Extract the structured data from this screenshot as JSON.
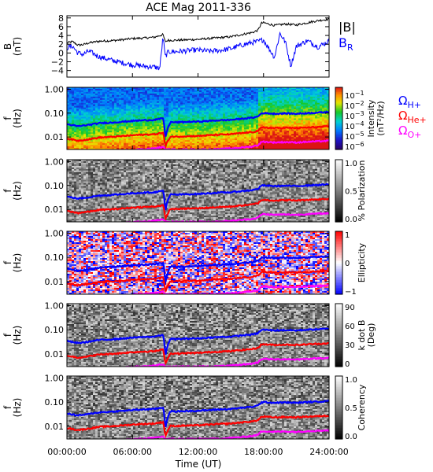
{
  "title": "ACE Mag 2011-336",
  "x_axis": {
    "label": "Time (UT)",
    "ticks": [
      {
        "value": 0,
        "label": "00:00:00"
      },
      {
        "value": 6,
        "label": "06:00:00"
      },
      {
        "value": 12,
        "label": "12:00:00"
      },
      {
        "value": 18,
        "label": "18:00:00"
      },
      {
        "value": 24,
        "label": "24:00:00"
      }
    ],
    "range": [
      0,
      24
    ]
  },
  "chart_data": [
    {
      "type": "line",
      "ylabel_line1": "B",
      "ylabel_line2": "(nT)",
      "ylim": [
        -5.5,
        8.5
      ],
      "yticks": [
        {
          "value": -4,
          "label": "−4"
        },
        {
          "value": -2,
          "label": "−2"
        },
        {
          "value": 0,
          "label": "0"
        },
        {
          "value": 2,
          "label": "2"
        },
        {
          "value": 4,
          "label": "4"
        },
        {
          "value": 6,
          "label": "6"
        },
        {
          "value": 8,
          "label": "8"
        }
      ],
      "series": [
        {
          "name": "|B|",
          "color": "#000000",
          "x": [
            0,
            0.5,
            1,
            1.5,
            2,
            3,
            4,
            5,
            6,
            7,
            8,
            8.8,
            9.0,
            9.3,
            10,
            11,
            12,
            13,
            14,
            15,
            16,
            17,
            17.5,
            17.8,
            18,
            19,
            20,
            21,
            22,
            23,
            24
          ],
          "y": [
            2.3,
            2.6,
            1.8,
            1.9,
            2.3,
            2.7,
            2.8,
            3.0,
            3.3,
            3.4,
            3.6,
            4.2,
            2.6,
            2.9,
            2.9,
            3.0,
            3.1,
            3.3,
            3.5,
            3.7,
            4.2,
            4.7,
            5.2,
            6.8,
            6.9,
            6.3,
            6.6,
            6.4,
            6.9,
            7.4,
            7.7
          ]
        },
        {
          "name": "B",
          "subscript": "R",
          "color": "#0000ff",
          "x": [
            0,
            0.5,
            1,
            1.5,
            2,
            3,
            4,
            5,
            6,
            7,
            8,
            8.5,
            8.8,
            9.0,
            9.3,
            10,
            11,
            12,
            13,
            14,
            15,
            16,
            17,
            17.5,
            17.8,
            18,
            19,
            19.5,
            20,
            20.5,
            21,
            22,
            23,
            24
          ],
          "y": [
            1.2,
            1.6,
            0.0,
            -0.3,
            0.4,
            -0.9,
            -1.6,
            -2.2,
            -2.7,
            -3.0,
            -3.2,
            -3.5,
            3.7,
            -0.8,
            0.3,
            0.3,
            0.5,
            0.7,
            0.4,
            0.6,
            1.0,
            1.8,
            2.4,
            2.6,
            2.9,
            3.0,
            -1.0,
            4.5,
            2.5,
            -3.0,
            1.5,
            2.8,
            1.4,
            2.7
          ]
        }
      ]
    },
    {
      "type": "heatmap",
      "ylabel_line1": "f",
      "ylabel_line2": "(Hz)",
      "colorbar": {
        "label_line1": "Intensity",
        "label_line2": "(nT²/Hz)",
        "scale": "rainbow",
        "ticks": [
          {
            "label": "10",
            "exp": "−1"
          },
          {
            "label": "10",
            "exp": "−2"
          },
          {
            "label": "10",
            "exp": "−3"
          },
          {
            "label": "10",
            "exp": "−4"
          },
          {
            "label": "10",
            "exp": "−5"
          },
          {
            "label": "10",
            "exp": "−6"
          }
        ]
      },
      "legend": [
        {
          "symbol": "Ω",
          "sub": "H+",
          "color": "#0000ff"
        },
        {
          "symbol": "Ω",
          "sub": "He+",
          "color": "#ff0000"
        },
        {
          "symbol": "Ω",
          "sub": "O+",
          "color": "#ff00ff"
        }
      ]
    },
    {
      "type": "heatmap",
      "ylabel_line1": "f",
      "ylabel_line2": "(Hz)",
      "colorbar": {
        "label_line1": "% Polarization",
        "label_line2": "",
        "scale": "gray",
        "ticks": [
          {
            "label": "1.0"
          },
          {
            "label": "0.5"
          },
          {
            "label": "0.0"
          }
        ]
      }
    },
    {
      "type": "heatmap",
      "ylabel_line1": "f",
      "ylabel_line2": "(Hz)",
      "colorbar": {
        "label_line1": "Ellipticity",
        "label_line2": "",
        "scale": "bwr",
        "ticks": [
          {
            "label": "1"
          },
          {
            "label": "0"
          },
          {
            "label": "−1"
          }
        ]
      }
    },
    {
      "type": "heatmap",
      "ylabel_line1": "f",
      "ylabel_line2": "(Hz)",
      "colorbar": {
        "label_line1": "k dot B",
        "label_line2": "(Deg)",
        "scale": "gray",
        "ticks": [
          {
            "label": "90"
          },
          {
            "label": "60"
          },
          {
            "label": "30"
          },
          {
            "label": "0"
          }
        ]
      }
    },
    {
      "type": "heatmap",
      "ylabel_line1": "f",
      "ylabel_line2": "(Hz)",
      "colorbar": {
        "label_line1": "Coherency",
        "label_line2": "",
        "scale": "gray",
        "ticks": [
          {
            "label": "1.0"
          },
          {
            "label": "0.5"
          },
          {
            "label": "0.0"
          }
        ]
      }
    }
  ],
  "frequency_axis": {
    "ylim": [
      0.003,
      1.2
    ],
    "scale": "log",
    "ticks": [
      {
        "value": 1.0,
        "label": "1.00"
      },
      {
        "value": 0.1,
        "label": "0.10"
      },
      {
        "value": 0.01,
        "label": "0.01"
      }
    ]
  },
  "gyrofrequency_lines": [
    {
      "name": "Ω H+",
      "color": "#0000ff",
      "x": [
        0,
        1,
        2,
        3,
        4,
        5,
        6,
        7,
        8,
        8.8,
        9.0,
        9.5,
        10,
        11,
        12,
        13,
        14,
        15,
        16,
        17,
        17.5,
        17.8,
        18,
        19,
        20,
        21,
        22,
        23,
        24
      ],
      "f": [
        0.034,
        0.028,
        0.032,
        0.038,
        0.04,
        0.043,
        0.047,
        0.05,
        0.052,
        0.06,
        0.007,
        0.042,
        0.041,
        0.043,
        0.044,
        0.047,
        0.05,
        0.052,
        0.058,
        0.064,
        0.072,
        0.098,
        0.1,
        0.094,
        0.097,
        0.094,
        0.1,
        0.105,
        0.11
      ]
    },
    {
      "name": "Ω He+",
      "color": "#ff0000",
      "x": [
        0,
        1,
        2,
        3,
        4,
        5,
        6,
        7,
        8,
        8.8,
        9.0,
        9.5,
        10,
        11,
        12,
        13,
        14,
        15,
        16,
        17,
        17.5,
        17.8,
        18,
        19,
        20,
        21,
        22,
        23,
        24
      ],
      "f": [
        0.0085,
        0.007,
        0.008,
        0.0095,
        0.01,
        0.0108,
        0.0118,
        0.0125,
        0.013,
        0.015,
        0.0035,
        0.0105,
        0.0103,
        0.0108,
        0.011,
        0.0118,
        0.0125,
        0.013,
        0.0145,
        0.016,
        0.018,
        0.0245,
        0.025,
        0.0235,
        0.0243,
        0.0235,
        0.025,
        0.0262,
        0.0275
      ]
    },
    {
      "name": "Ω O+",
      "color": "#ff00ff",
      "x": [
        0,
        1,
        2,
        3,
        4,
        5,
        6,
        7,
        8,
        8.8,
        9.0,
        9.5,
        10,
        11,
        12,
        13,
        14,
        15,
        16,
        17,
        17.5,
        17.8,
        18,
        19,
        20,
        21,
        22,
        23,
        24
      ],
      "f": [
        0.0021,
        0.0018,
        0.002,
        0.0024,
        0.0025,
        0.0027,
        0.0029,
        0.0031,
        0.0033,
        0.0038,
        0.003,
        0.003,
        0.003,
        0.003,
        0.003,
        0.003,
        0.0031,
        0.0033,
        0.0036,
        0.004,
        0.0045,
        0.0061,
        0.0063,
        0.0059,
        0.0061,
        0.0059,
        0.0063,
        0.0066,
        0.0069
      ]
    }
  ]
}
